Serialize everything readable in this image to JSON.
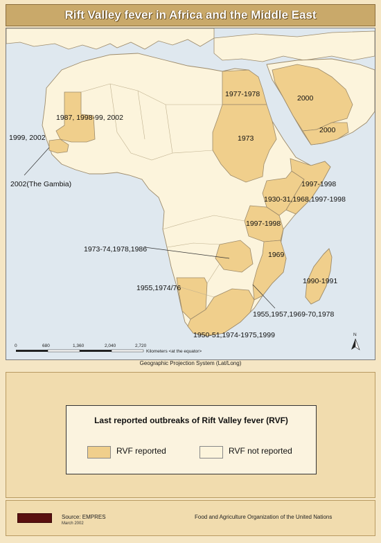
{
  "title": "Rift Valley fever in Africa and the Middle East",
  "colors": {
    "reported": "#f0cf8c",
    "not_reported": "#fcf4dc",
    "ocean": "#dfe8ef",
    "border": "#9c8a6a"
  },
  "map": {
    "labels": {
      "mauritania": "1987, 1998-99, 2002",
      "senegal": "1999, 2002",
      "gambia": "2002(The Gambia)",
      "egypt": "1977-1978",
      "sudan": "1973",
      "saudi_arabia": "2000",
      "yemen": "2000",
      "somalia": "1997-1998",
      "kenya": "1930-31,1968,1997-1998",
      "tanzania": "1997-1998",
      "mozambique": "1969",
      "zimbabwe": "1973-74,1978,1986",
      "namibia": "1955,1974/76",
      "madagascar": "1990-1991",
      "south_africa": "1950-51,1974-1975,1999",
      "swaziland": "1955,1957,1969-70,1978"
    },
    "scale_ticks": [
      "0",
      "680",
      "1,360",
      "2,040",
      "2,720"
    ],
    "scale_caption": "Kilometers <at the equator>",
    "north_label": "N"
  },
  "projection": "Geographic Projection System (Lat/Long)",
  "legend": {
    "title": "Last reported outbreaks of Rift Valley fever (RVF)",
    "reported_label": "RVF reported",
    "not_reported_label": "RVF not reported"
  },
  "footer": {
    "source": "Source: EMPRES",
    "date": "March 2002",
    "organization": "Food and Agriculture Organization of the United Nations"
  }
}
